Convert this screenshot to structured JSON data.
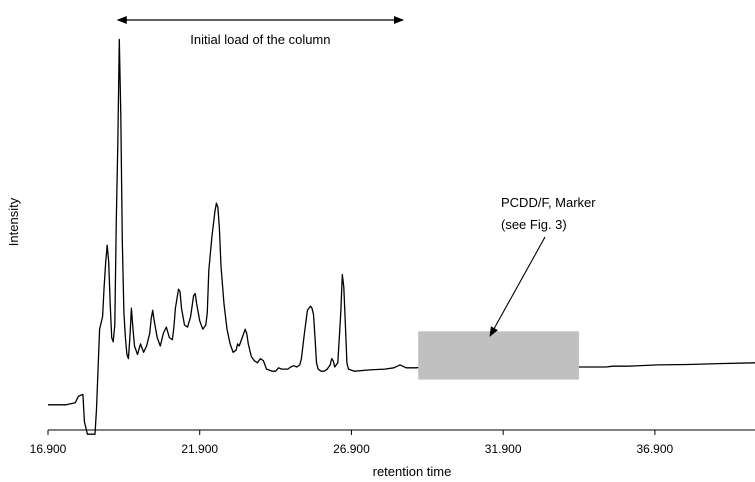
{
  "chart_data": {
    "type": "line",
    "xlabel": "retention time",
    "ylabel": "Intensity",
    "xlim": [
      16.9,
      40.2
    ],
    "ylim": [
      0,
      100
    ],
    "x_ticks": [
      "16.900",
      "21.900",
      "26.900",
      "31.900",
      "36.900"
    ],
    "grid": false,
    "legend": "none",
    "series": [
      {
        "color": "#000000",
        "points": [
          [
            16.9,
            6.0
          ],
          [
            17.5,
            6.0
          ],
          [
            17.8,
            6.5
          ],
          [
            17.9,
            8.0
          ],
          [
            18.05,
            8.5
          ],
          [
            18.1,
            2.0
          ],
          [
            18.2,
            -1.0
          ],
          [
            18.45,
            -1.0
          ],
          [
            18.5,
            5.0
          ],
          [
            18.6,
            24.0
          ],
          [
            18.7,
            27.0
          ],
          [
            18.75,
            34.0
          ],
          [
            18.8,
            40.0
          ],
          [
            18.85,
            44.0
          ],
          [
            18.9,
            40.0
          ],
          [
            18.95,
            30.0
          ],
          [
            19.0,
            22.0
          ],
          [
            19.05,
            21.0
          ],
          [
            19.1,
            25.0
          ],
          [
            19.15,
            50.0
          ],
          [
            19.2,
            68.0
          ],
          [
            19.25,
            93.0
          ],
          [
            19.3,
            75.0
          ],
          [
            19.35,
            45.0
          ],
          [
            19.4,
            28.0
          ],
          [
            19.45,
            22.0
          ],
          [
            19.5,
            18.0
          ],
          [
            19.55,
            17.0
          ],
          [
            19.6,
            22.0
          ],
          [
            19.65,
            29.0
          ],
          [
            19.7,
            24.0
          ],
          [
            19.75,
            20.0
          ],
          [
            19.85,
            18.0
          ],
          [
            19.95,
            20.5
          ],
          [
            20.05,
            18.5
          ],
          [
            20.15,
            20.0
          ],
          [
            20.25,
            23.0
          ],
          [
            20.3,
            26.5
          ],
          [
            20.35,
            28.5
          ],
          [
            20.4,
            26.0
          ],
          [
            20.5,
            22.0
          ],
          [
            20.6,
            20.0
          ],
          [
            20.7,
            23.0
          ],
          [
            20.8,
            24.5
          ],
          [
            20.9,
            22.0
          ],
          [
            21.0,
            21.5
          ],
          [
            21.05,
            24.5
          ],
          [
            21.1,
            29.0
          ],
          [
            21.2,
            33.5
          ],
          [
            21.25,
            33.0
          ],
          [
            21.3,
            29.0
          ],
          [
            21.4,
            25.0
          ],
          [
            21.5,
            24.5
          ],
          [
            21.6,
            27.0
          ],
          [
            21.7,
            32.0
          ],
          [
            21.75,
            32.5
          ],
          [
            21.8,
            30.0
          ],
          [
            21.9,
            26.0
          ],
          [
            22.0,
            24.0
          ],
          [
            22.1,
            25.0
          ],
          [
            22.15,
            28.0
          ],
          [
            22.2,
            38.0
          ],
          [
            22.3,
            46.0
          ],
          [
            22.4,
            52.0
          ],
          [
            22.45,
            54.0
          ],
          [
            22.5,
            53.0
          ],
          [
            22.55,
            48.0
          ],
          [
            22.6,
            39.0
          ],
          [
            22.7,
            30.0
          ],
          [
            22.8,
            24.0
          ],
          [
            22.9,
            20.5
          ],
          [
            23.0,
            18.5
          ],
          [
            23.1,
            19.0
          ],
          [
            23.15,
            20.5
          ],
          [
            23.2,
            20.0
          ],
          [
            23.3,
            22.0
          ],
          [
            23.4,
            24.0
          ],
          [
            23.45,
            23.0
          ],
          [
            23.5,
            20.5
          ],
          [
            23.6,
            17.5
          ],
          [
            23.7,
            16.5
          ],
          [
            23.8,
            16.0
          ],
          [
            23.9,
            17.0
          ],
          [
            24.0,
            16.5
          ],
          [
            24.1,
            14.5
          ],
          [
            24.3,
            14.0
          ],
          [
            24.4,
            14.0
          ],
          [
            24.5,
            14.8
          ],
          [
            24.6,
            14.5
          ],
          [
            24.8,
            14.5
          ],
          [
            24.9,
            15.0
          ],
          [
            25.0,
            15.3
          ],
          [
            25.1,
            15.0
          ],
          [
            25.2,
            15.5
          ],
          [
            25.25,
            17.0
          ],
          [
            25.35,
            23.0
          ],
          [
            25.45,
            28.5
          ],
          [
            25.55,
            29.5
          ],
          [
            25.6,
            29.0
          ],
          [
            25.65,
            27.5
          ],
          [
            25.7,
            22.0
          ],
          [
            25.75,
            16.0
          ],
          [
            25.8,
            14.5
          ],
          [
            25.9,
            14.0
          ],
          [
            26.0,
            14.0
          ],
          [
            26.1,
            14.5
          ],
          [
            26.2,
            15.5
          ],
          [
            26.25,
            17.0
          ],
          [
            26.3,
            16.5
          ],
          [
            26.35,
            15.0
          ],
          [
            26.45,
            16.0
          ],
          [
            26.55,
            28.0
          ],
          [
            26.6,
            37.0
          ],
          [
            26.65,
            34.0
          ],
          [
            26.7,
            25.0
          ],
          [
            26.75,
            16.0
          ],
          [
            26.8,
            14.5
          ],
          [
            27.0,
            14.0
          ],
          [
            27.5,
            14.3
          ],
          [
            28.0,
            14.5
          ],
          [
            28.3,
            14.8
          ],
          [
            28.5,
            15.5
          ],
          [
            28.7,
            14.8
          ],
          [
            29.0,
            14.8
          ],
          [
            29.5,
            15.0
          ],
          [
            29.9,
            15.2
          ],
          [
            30.0,
            15.0
          ],
          [
            35.3,
            15.0
          ],
          [
            35.5,
            15.2
          ],
          [
            36.0,
            15.2
          ],
          [
            37.0,
            15.5
          ],
          [
            38.0,
            15.6
          ],
          [
            39.0,
            15.8
          ],
          [
            40.2,
            16.0
          ]
        ]
      }
    ],
    "annotations": [
      {
        "text": "Initial load of the column",
        "type": "double-arrow",
        "x_from": 19.2,
        "x_to": 28.6
      },
      {
        "text_lines": [
          "PCDD/F, Marker",
          "(see Fig. 3)"
        ],
        "type": "arrow-to-region"
      }
    ],
    "highlight_region": {
      "x_from": 29.1,
      "x_to": 34.4,
      "y_from": 12.0,
      "y_to": 23.5,
      "color": "#c0c0c0"
    }
  }
}
